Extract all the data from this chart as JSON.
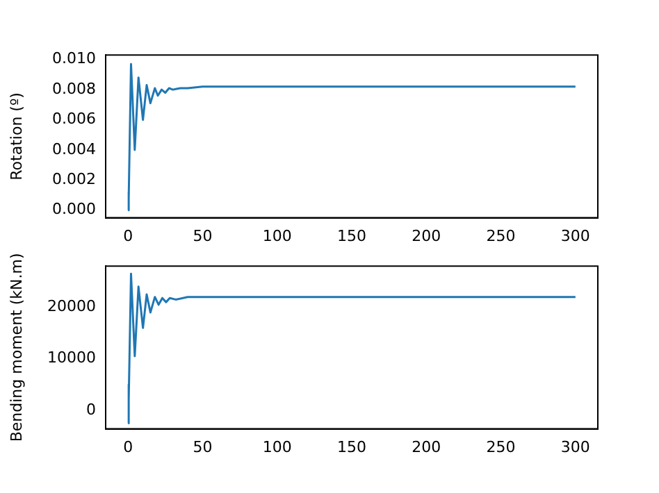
{
  "chart_data": [
    {
      "type": "line",
      "ylabel": "Rotation (º)",
      "xlim": [
        -15,
        315
      ],
      "xticks": [
        0,
        50,
        100,
        150,
        200,
        250,
        300
      ],
      "ylim": [
        -0.0005,
        0.0103
      ],
      "yticks": [
        {
          "value": 0,
          "label": "0.000"
        },
        {
          "value": 0.002,
          "label": "0.002"
        },
        {
          "value": 0.004,
          "label": "0.004"
        },
        {
          "value": 0.006,
          "label": "0.006"
        },
        {
          "value": 0.008,
          "label": "0.008"
        },
        {
          "value": 0.01,
          "label": "0.010"
        }
      ],
      "grid": false,
      "legend": false,
      "marker": "none",
      "line_style": "solid",
      "series": [
        {
          "color": "#1f77b4",
          "x": [
            0,
            0.3,
            0.6,
            2,
            4.5,
            7,
            10,
            12.5,
            15,
            18,
            20,
            22.5,
            25,
            27.5,
            30,
            35,
            40,
            50,
            75,
            100,
            150,
            200,
            250,
            300
          ],
          "values": [
            0,
            0.0012,
            0.0008,
            0.0097,
            0.004,
            0.0088,
            0.006,
            0.0083,
            0.0071,
            0.0081,
            0.0076,
            0.008,
            0.0078,
            0.0081,
            0.008,
            0.0081,
            0.0081,
            0.0082,
            0.0082,
            0.0082,
            0.0082,
            0.0082,
            0.0082,
            0.0082
          ]
        }
      ]
    },
    {
      "type": "line",
      "ylabel": "Bending moment (kN.m)",
      "xlim": [
        -15,
        315
      ],
      "xticks": [
        0,
        50,
        100,
        150,
        200,
        250,
        300
      ],
      "ylim": [
        -3600,
        28000
      ],
      "yticks": [
        0,
        10000,
        20000
      ],
      "grid": false,
      "legend": false,
      "marker": "none",
      "line_style": "solid",
      "series": [
        {
          "color": "#1f77b4",
          "x": [
            0,
            0.3,
            0.6,
            2,
            4.5,
            7,
            10,
            12.5,
            15,
            18,
            20.5,
            23,
            25.5,
            28,
            32,
            40,
            50,
            75,
            100,
            150,
            200,
            250,
            300
          ],
          "values": [
            -2500,
            5000,
            2000,
            26500,
            10500,
            24000,
            16000,
            22500,
            19000,
            22000,
            20500,
            21800,
            21000,
            21800,
            21500,
            22000,
            22000,
            22000,
            22000,
            22000,
            22000,
            22000,
            22000
          ]
        }
      ]
    }
  ]
}
